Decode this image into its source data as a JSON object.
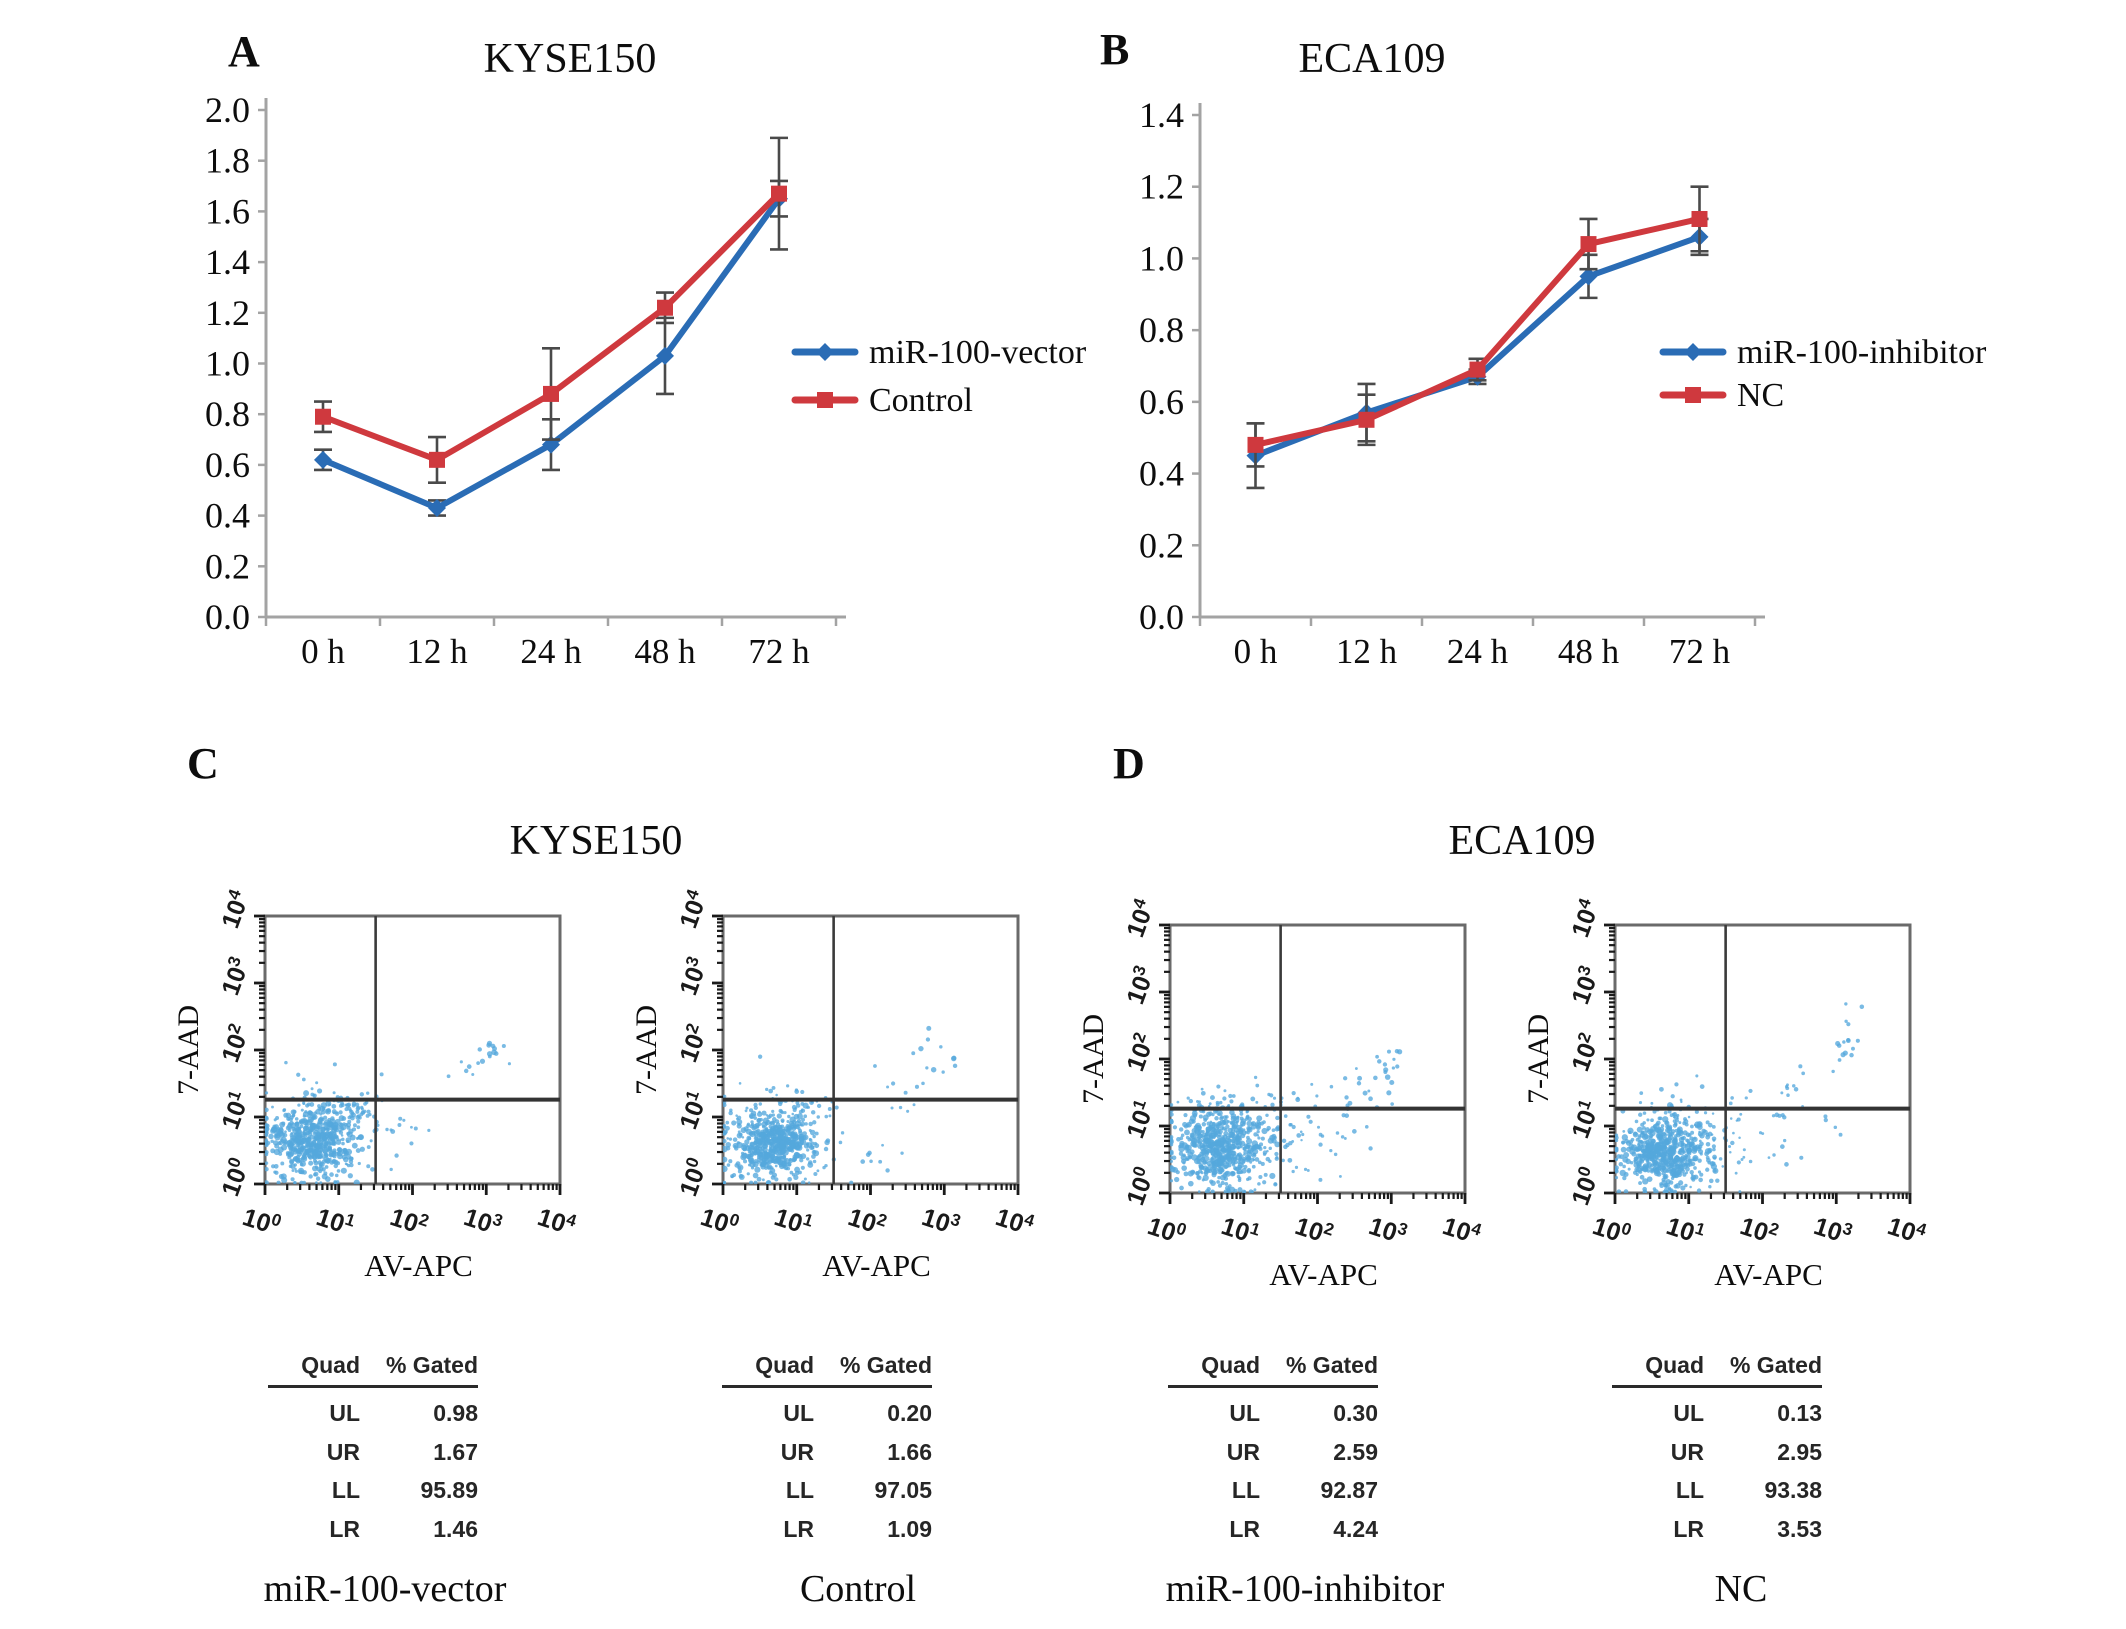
{
  "panels": {
    "a": {
      "label": "A"
    },
    "b": {
      "label": "B"
    },
    "c": {
      "label": "C",
      "title": "KYSE150"
    },
    "d": {
      "label": "D",
      "title": "ECA109"
    }
  },
  "colors": {
    "series_blue": "#2a6cb5",
    "series_red": "#cf393e",
    "error_bar": "#4a4a4a",
    "axis": "#a3a3a3",
    "tick_text": "#1a1a1a",
    "dot_blue": "#54a8dc",
    "frame": "#6a6a6a",
    "quad_line": "#3a3a3a"
  },
  "chart_data": [
    {
      "type": "line",
      "panel": "A",
      "title": "KYSE150",
      "categories": [
        "0 h",
        "12 h",
        "24 h",
        "48 h",
        "72 h"
      ],
      "ylim": [
        0,
        2.0
      ],
      "ytick_step": 0.2,
      "legend_position": "right",
      "series": [
        {
          "name": "miR-100-vector",
          "color": "#2a6cb5",
          "marker": "diamond",
          "values": [
            0.62,
            0.43,
            0.68,
            1.03,
            1.65
          ],
          "errors": [
            0.04,
            0.03,
            0.1,
            0.15,
            0.07
          ]
        },
        {
          "name": "Control",
          "color": "#cf393e",
          "marker": "square",
          "values": [
            0.79,
            0.62,
            0.88,
            1.22,
            1.67
          ],
          "errors": [
            0.06,
            0.09,
            0.18,
            0.06,
            0.22
          ]
        }
      ]
    },
    {
      "type": "line",
      "panel": "B",
      "title": "ECA109",
      "categories": [
        "0 h",
        "12 h",
        "24 h",
        "48 h",
        "72 h"
      ],
      "ylim": [
        0,
        1.4
      ],
      "ytick_step": 0.2,
      "legend_position": "right",
      "series": [
        {
          "name": "miR-100-inhibitor",
          "color": "#2a6cb5",
          "marker": "diamond",
          "values": [
            0.45,
            0.57,
            0.67,
            0.95,
            1.06
          ],
          "errors": [
            0.09,
            0.08,
            0.02,
            0.06,
            0.05
          ]
        },
        {
          "name": "NC",
          "color": "#cf393e",
          "marker": "square",
          "values": [
            0.48,
            0.55,
            0.69,
            1.04,
            1.11
          ],
          "errors": [
            0.06,
            0.07,
            0.03,
            0.07,
            0.09
          ]
        }
      ]
    },
    {
      "type": "scatter",
      "panel": "C",
      "cell_line": "KYSE150",
      "caption": "miR-100-vector",
      "xlabel": "AV-APC",
      "ylabel": "7-AAD",
      "x_tick_exponents": [
        0,
        1,
        2,
        3,
        4
      ],
      "y_tick_exponents": [
        0,
        1,
        2,
        3,
        4
      ],
      "quad_table": {
        "header": [
          "Quad",
          "% Gated"
        ],
        "rows": [
          [
            "UL",
            "0.98"
          ],
          [
            "UR",
            "1.67"
          ],
          [
            "LL",
            "95.89"
          ],
          [
            "LR",
            "1.46"
          ]
        ]
      },
      "seed": 11,
      "clusters": [
        {
          "x": 0.16,
          "y": 0.16,
          "sx": 0.065,
          "sy": 0.06,
          "n": 420,
          "rmin": 1.6,
          "rmax": 3.2
        },
        {
          "x": 0.18,
          "y": 0.19,
          "sx": 0.11,
          "sy": 0.1,
          "n": 190,
          "rmin": 1.2,
          "rmax": 2.4
        },
        {
          "x": 0.3,
          "y": 0.28,
          "sx": 0.03,
          "sy": 0.03,
          "n": 25,
          "rmin": 1.5,
          "rmax": 2.5
        },
        {
          "x": 0.76,
          "y": 0.5,
          "sx": 0.022,
          "sy": 0.018,
          "n": 11,
          "rmin": 1.8,
          "rmax": 3.0
        },
        {
          "x": 0.68,
          "y": 0.43,
          "sx": 0.05,
          "sy": 0.035,
          "n": 7,
          "rmin": 1.5,
          "rmax": 2.5
        },
        {
          "x": 0.48,
          "y": 0.17,
          "sx": 0.07,
          "sy": 0.07,
          "n": 10,
          "rmin": 1.4,
          "rmax": 2.4
        },
        {
          "x": 0.4,
          "y": 0.3,
          "sx": 0.03,
          "sy": 0.04,
          "n": 4,
          "rmin": 1.4,
          "rmax": 2.2
        }
      ]
    },
    {
      "type": "scatter",
      "panel": "C",
      "cell_line": "KYSE150",
      "caption": "Control",
      "xlabel": "AV-APC",
      "ylabel": "7-AAD",
      "x_tick_exponents": [
        0,
        1,
        2,
        3,
        4
      ],
      "y_tick_exponents": [
        0,
        1,
        2,
        3,
        4
      ],
      "quad_table": {
        "header": [
          "Quad",
          "% Gated"
        ],
        "rows": [
          [
            "UL",
            "0.20"
          ],
          [
            "UR",
            "1.66"
          ],
          [
            "LL",
            "97.05"
          ],
          [
            "LR",
            "1.09"
          ]
        ]
      },
      "seed": 22,
      "clusters": [
        {
          "x": 0.17,
          "y": 0.15,
          "sx": 0.065,
          "sy": 0.058,
          "n": 430,
          "rmin": 1.6,
          "rmax": 3.2
        },
        {
          "x": 0.19,
          "y": 0.18,
          "sx": 0.105,
          "sy": 0.095,
          "n": 180,
          "rmin": 1.2,
          "rmax": 2.4
        },
        {
          "x": 0.72,
          "y": 0.49,
          "sx": 0.05,
          "sy": 0.05,
          "n": 12,
          "rmin": 1.6,
          "rmax": 2.8
        },
        {
          "x": 0.57,
          "y": 0.38,
          "sx": 0.05,
          "sy": 0.05,
          "n": 5,
          "rmin": 1.4,
          "rmax": 2.4
        },
        {
          "x": 0.49,
          "y": 0.15,
          "sx": 0.06,
          "sy": 0.06,
          "n": 8,
          "rmin": 1.4,
          "rmax": 2.4
        },
        {
          "x": 0.63,
          "y": 0.25,
          "sx": 0.04,
          "sy": 0.05,
          "n": 4,
          "rmin": 1.4,
          "rmax": 2.2
        }
      ]
    },
    {
      "type": "scatter",
      "panel": "D",
      "cell_line": "ECA109",
      "caption": "miR-100-inhibitor",
      "xlabel": "AV-APC",
      "ylabel": "7-AAD",
      "x_tick_exponents": [
        0,
        1,
        2,
        3,
        4
      ],
      "y_tick_exponents": [
        0,
        1,
        2,
        3,
        4
      ],
      "quad_table": {
        "header": [
          "Quad",
          "% Gated"
        ],
        "rows": [
          [
            "UL",
            "0.30"
          ],
          [
            "UR",
            "2.59"
          ],
          [
            "LL",
            "92.87"
          ],
          [
            "LR",
            "4.24"
          ]
        ]
      },
      "seed": 33,
      "clusters": [
        {
          "x": 0.17,
          "y": 0.17,
          "sx": 0.075,
          "sy": 0.065,
          "n": 440,
          "rmin": 1.6,
          "rmax": 3.2
        },
        {
          "x": 0.2,
          "y": 0.2,
          "sx": 0.13,
          "sy": 0.105,
          "n": 220,
          "rmin": 1.2,
          "rmax": 2.4
        },
        {
          "x": 0.55,
          "y": 0.37,
          "sx": 0.1,
          "sy": 0.06,
          "n": 22,
          "rmin": 1.4,
          "rmax": 2.6
        },
        {
          "x": 0.7,
          "y": 0.47,
          "sx": 0.06,
          "sy": 0.05,
          "n": 15,
          "rmin": 1.6,
          "rmax": 2.8
        },
        {
          "x": 0.52,
          "y": 0.2,
          "sx": 0.09,
          "sy": 0.07,
          "n": 16,
          "rmin": 1.4,
          "rmax": 2.4
        },
        {
          "x": 0.35,
          "y": 0.33,
          "sx": 0.03,
          "sy": 0.02,
          "n": 6,
          "rmin": 1.4,
          "rmax": 2.2
        }
      ]
    },
    {
      "type": "scatter",
      "panel": "D",
      "cell_line": "ECA109",
      "caption": "NC",
      "xlabel": "AV-APC",
      "ylabel": "7-AAD",
      "x_tick_exponents": [
        0,
        1,
        2,
        3,
        4
      ],
      "y_tick_exponents": [
        0,
        1,
        2,
        3,
        4
      ],
      "quad_table": {
        "header": [
          "Quad",
          "% Gated"
        ],
        "rows": [
          [
            "UL",
            "0.13"
          ],
          [
            "UR",
            "2.95"
          ],
          [
            "LL",
            "93.38"
          ],
          [
            "LR",
            "3.53"
          ]
        ]
      },
      "seed": 44,
      "clusters": [
        {
          "x": 0.16,
          "y": 0.15,
          "sx": 0.068,
          "sy": 0.058,
          "n": 430,
          "rmin": 1.6,
          "rmax": 3.2
        },
        {
          "x": 0.19,
          "y": 0.18,
          "sx": 0.115,
          "sy": 0.095,
          "n": 200,
          "rmin": 1.2,
          "rmax": 2.4
        },
        {
          "x": 0.56,
          "y": 0.34,
          "sx": 0.08,
          "sy": 0.07,
          "n": 18,
          "rmin": 1.4,
          "rmax": 2.4
        },
        {
          "x": 0.77,
          "y": 0.52,
          "sx": 0.035,
          "sy": 0.04,
          "n": 12,
          "rmin": 1.6,
          "rmax": 2.8
        },
        {
          "x": 0.8,
          "y": 0.66,
          "sx": 0.02,
          "sy": 0.035,
          "n": 4,
          "rmin": 1.5,
          "rmax": 2.5
        },
        {
          "x": 0.5,
          "y": 0.16,
          "sx": 0.08,
          "sy": 0.06,
          "n": 12,
          "rmin": 1.4,
          "rmax": 2.4
        },
        {
          "x": 0.7,
          "y": 0.25,
          "sx": 0.05,
          "sy": 0.06,
          "n": 5,
          "rmin": 1.4,
          "rmax": 2.2
        }
      ]
    }
  ]
}
